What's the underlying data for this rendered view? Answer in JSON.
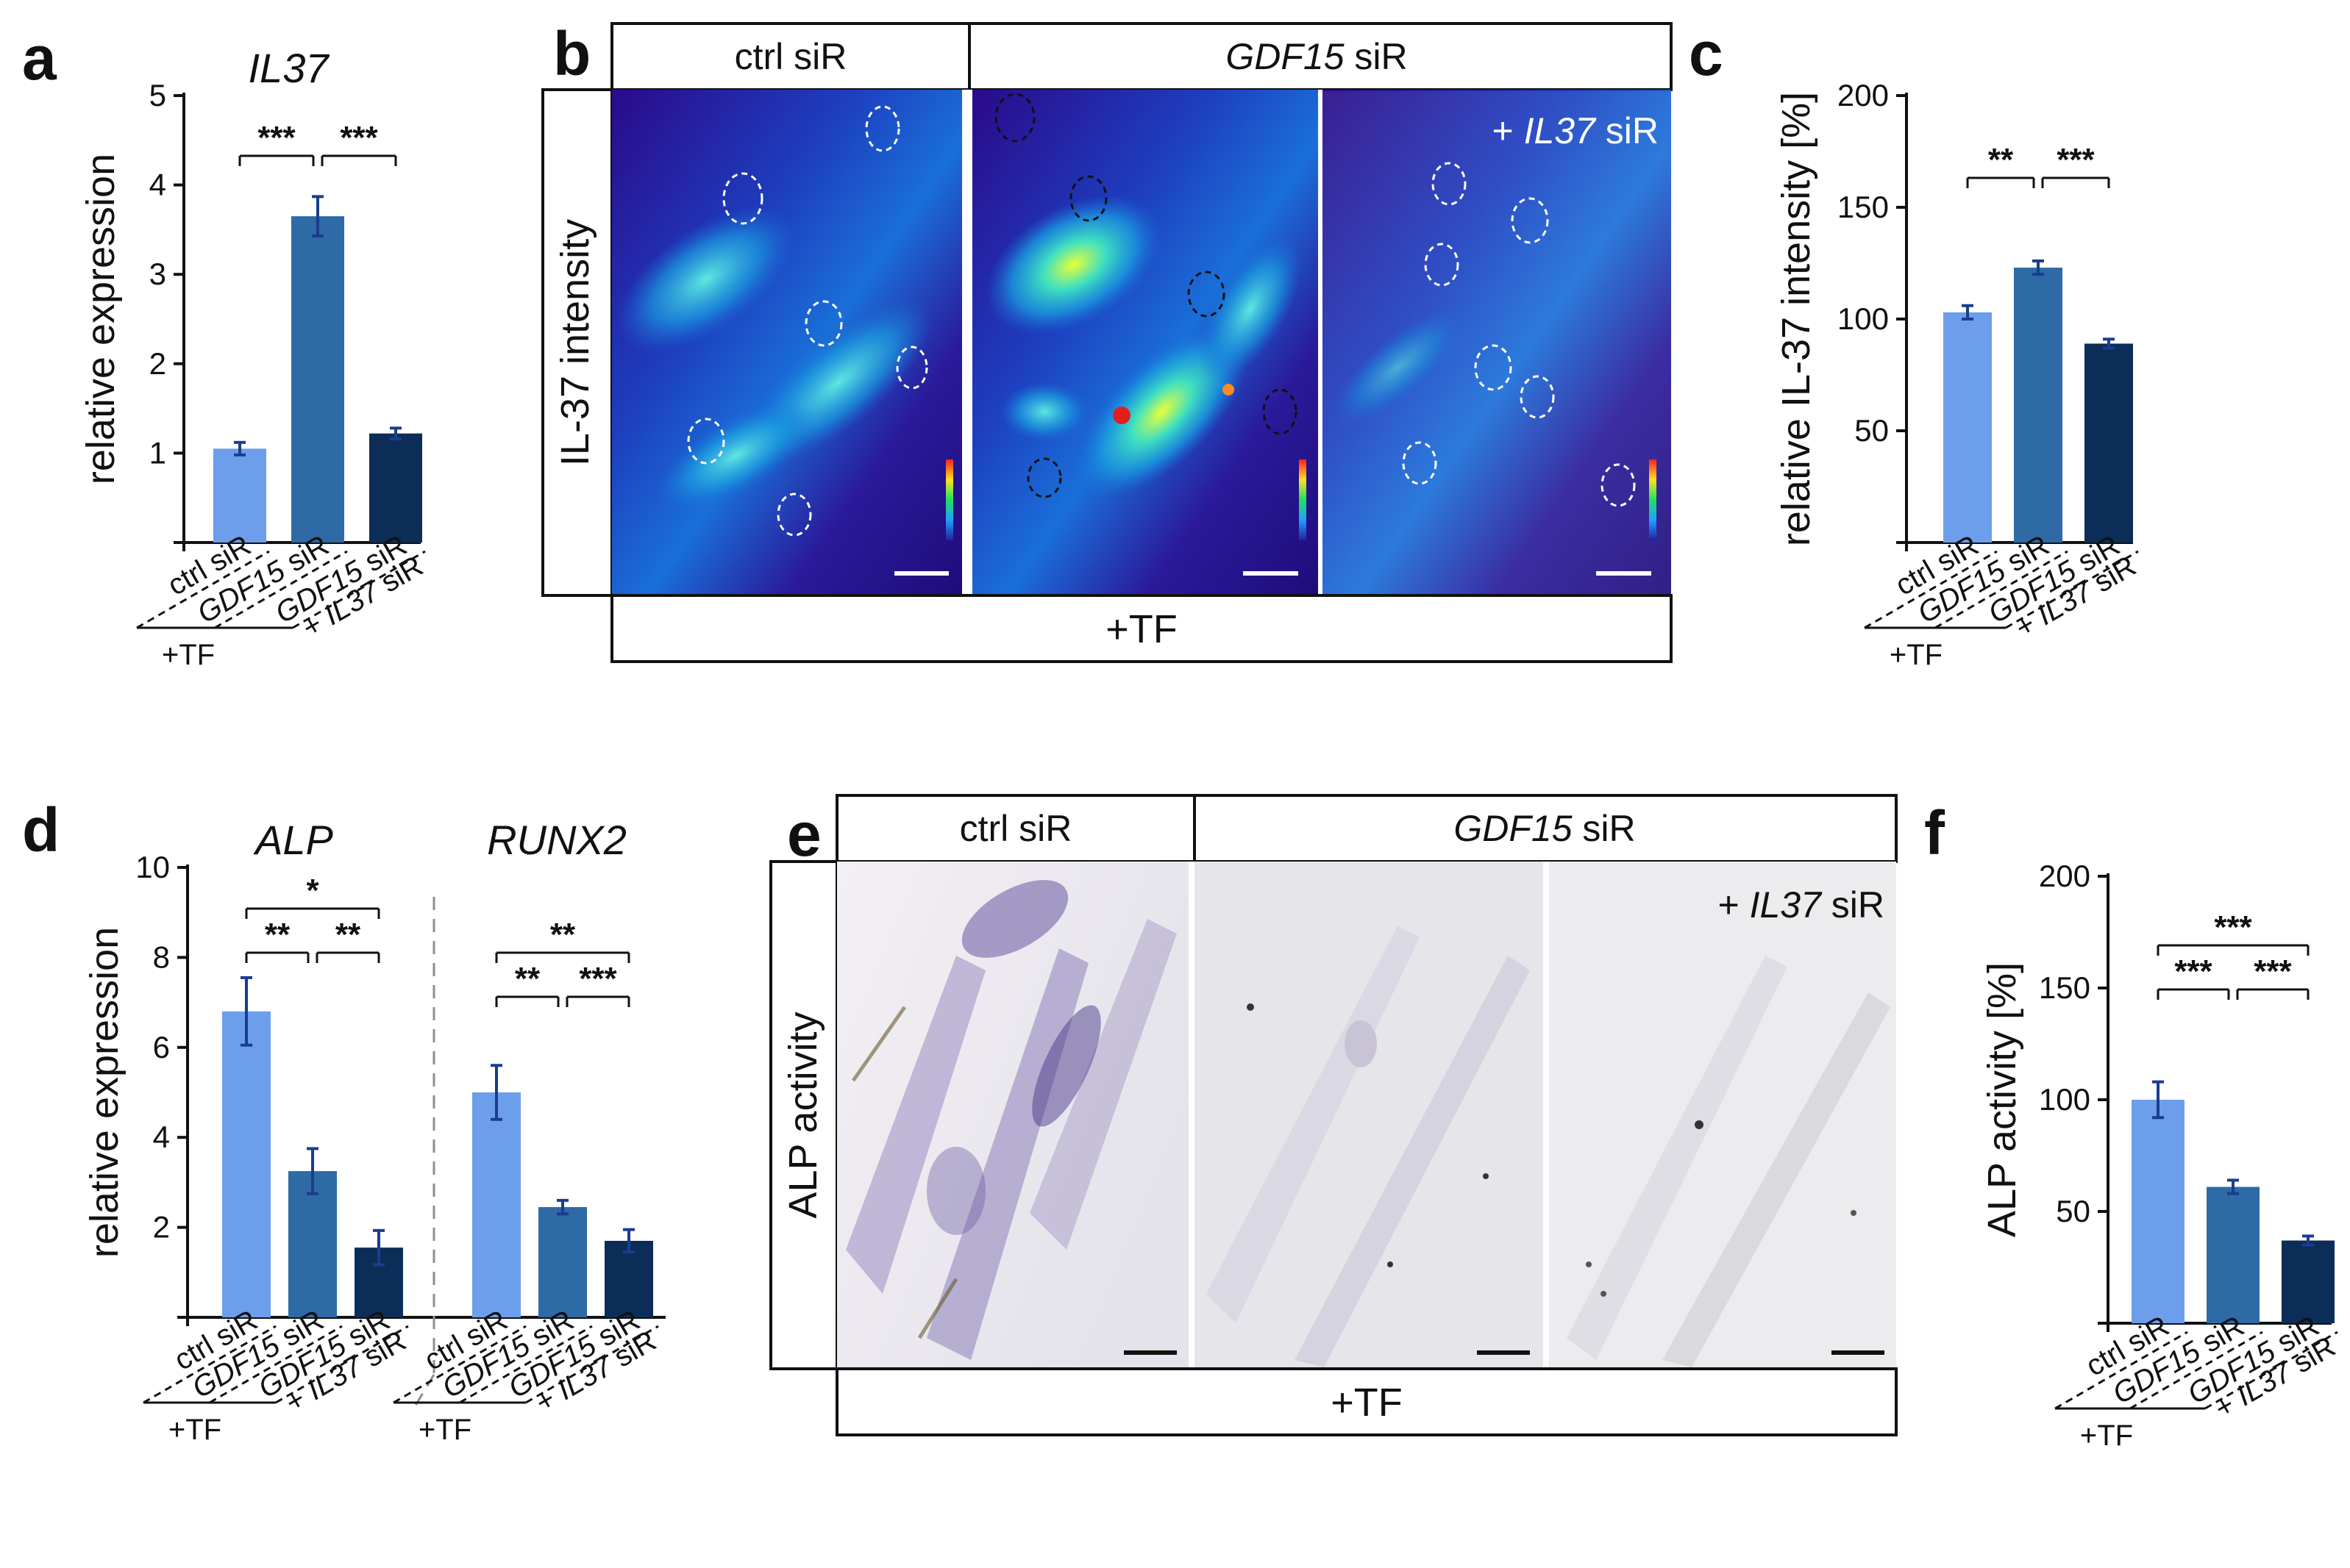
{
  "colors": {
    "ctrl": "#6d9eeb",
    "gdf15": "#2e6aa6",
    "gdf15_il37": "#0b2d57",
    "error": "#1a3d8f"
  },
  "panels": {
    "a": {
      "label": "a",
      "title": "IL37",
      "ylabel": "relative expression",
      "yticks": [
        "5",
        "4",
        "3",
        "2",
        "1"
      ]
    },
    "b": {
      "label": "b",
      "header_ctrl": "ctrl siR",
      "header_gdf_gene": "GDF15",
      "header_gdf_suffix": " siR",
      "overlay_prefix": "+ ",
      "overlay_gene": "IL37",
      "overlay_suffix": " siR",
      "row_label": "IL-37 intensity",
      "footer": "+TF"
    },
    "c": {
      "label": "c",
      "ylabel": "relative IL-37 intensity [%]",
      "yticks": [
        "200",
        "150",
        "100",
        "50"
      ]
    },
    "d": {
      "label": "d",
      "title_left": "ALP",
      "title_right": "RUNX2",
      "ylabel": "relative expression",
      "yticks": [
        "10",
        "8",
        "6",
        "4",
        "2"
      ]
    },
    "e": {
      "label": "e",
      "header_ctrl": "ctrl siR",
      "header_gdf_gene": "GDF15",
      "header_gdf_suffix": " siR",
      "overlay_prefix": "+ ",
      "overlay_gene": "IL37",
      "overlay_suffix": " siR",
      "row_label": "ALP activity",
      "footer": "+TF"
    },
    "f": {
      "label": "f",
      "ylabel": "ALP activity [%]",
      "yticks": [
        "200",
        "150",
        "100",
        "50"
      ]
    }
  },
  "categories": {
    "ctrl": "ctrl siR",
    "gdf": {
      "gene": "GDF15",
      "suffix": " siR"
    },
    "combo_line1": {
      "gene": "GDF15",
      "suffix": " siR"
    },
    "combo_line2": {
      "prefix": "+ ",
      "gene": "IL37",
      "suffix": " siR"
    },
    "tf": "+TF"
  },
  "significance": {
    "a": [
      "***",
      "***"
    ],
    "c": [
      "**",
      "***"
    ],
    "d_alp": [
      "*",
      "**",
      "**"
    ],
    "d_runx2": [
      "**",
      "**",
      "***"
    ],
    "f": [
      "***",
      "***",
      "***"
    ]
  },
  "chart_data": [
    {
      "panel": "a",
      "type": "bar",
      "title": "IL37",
      "ylabel": "relative expression",
      "ylim": [
        0,
        5
      ],
      "categories": [
        "ctrl siR",
        "GDF15 siR",
        "GDF15 siR + IL37 siR"
      ],
      "values": [
        1.05,
        3.65,
        1.22
      ],
      "errors": [
        0.07,
        0.22,
        0.06
      ]
    },
    {
      "panel": "c",
      "type": "bar",
      "ylabel": "relative IL-37 intensity [%]",
      "ylim": [
        0,
        200
      ],
      "categories": [
        "ctrl siR",
        "GDF15 siR",
        "GDF15 siR + IL37 siR"
      ],
      "values": [
        103,
        123,
        89
      ],
      "errors": [
        3,
        3,
        2
      ]
    },
    {
      "panel": "d",
      "type": "bar",
      "ylabel": "relative expression",
      "ylim": [
        0,
        10
      ],
      "categories": [
        "ctrl siR",
        "GDF15 siR",
        "GDF15 siR + IL37 siR"
      ],
      "series": [
        {
          "name": "ALP",
          "values": [
            6.8,
            3.25,
            1.55
          ],
          "errors": [
            0.75,
            0.5,
            0.38
          ]
        },
        {
          "name": "RUNX2",
          "values": [
            5.0,
            2.45,
            1.7
          ],
          "errors": [
            0.6,
            0.15,
            0.25
          ]
        }
      ]
    },
    {
      "panel": "f",
      "type": "bar",
      "ylabel": "ALP activity [%]",
      "ylim": [
        0,
        200
      ],
      "categories": [
        "ctrl siR",
        "GDF15 siR",
        "GDF15 siR + IL37 siR"
      ],
      "values": [
        100,
        61,
        37
      ],
      "errors": [
        8,
        3,
        2
      ]
    }
  ]
}
